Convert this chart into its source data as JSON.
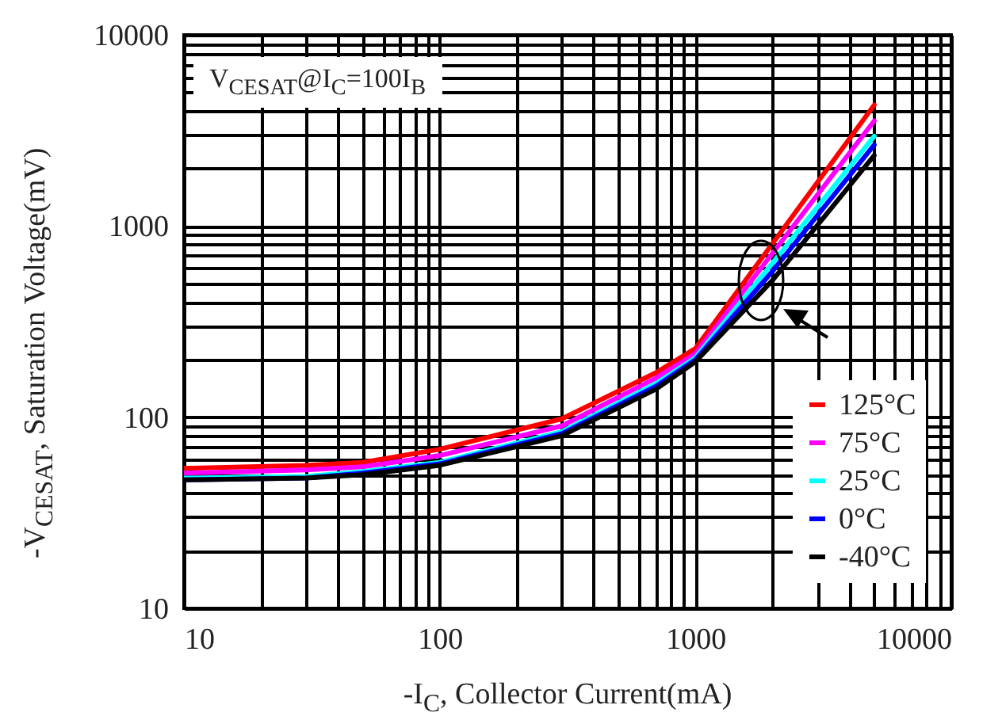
{
  "chart_data": {
    "type": "line",
    "xlabel": "-I$_{C}$, Collector Current(mA)",
    "ylabel": "-V$_{CESAT}$, Saturation Voltage(mV)",
    "annotations": [
      "V$_{CESAT}$@I$_{C}$=100I$_{B}$"
    ],
    "x": [
      10,
      30,
      50,
      100,
      300,
      700,
      1000,
      2000,
      5000
    ],
    "series": [
      {
        "name": "125°C",
        "color": "#ff0000",
        "values": [
          54,
          56,
          58,
          68,
          98,
          171,
          229,
          810,
          4300
        ]
      },
      {
        "name": "75°C",
        "color": "#ff00ff",
        "values": [
          51,
          53,
          55,
          63,
          90,
          160,
          215,
          720,
          3550
        ]
      },
      {
        "name": "25°C",
        "color": "#00ffff",
        "values": [
          48,
          49,
          52,
          58,
          84,
          150,
          205,
          640,
          2950
        ]
      },
      {
        "name": "0°C",
        "color": "#0000ff",
        "values": [
          47,
          48,
          51,
          57,
          82,
          145,
          200,
          580,
          2660
        ]
      },
      {
        "name": "-40°C",
        "color": "#000000",
        "values": [
          47,
          48,
          50,
          56,
          80,
          140,
          195,
          520,
          2340
        ]
      }
    ],
    "log": "xy",
    "xlim": [
      10,
      10000
    ],
    "ylim": [
      10,
      10000
    ],
    "xticks": [
      10,
      {
        "value": 20,
        "label": null
      },
      {
        "value": 30,
        "label": null
      },
      {
        "value": 40,
        "label": null
      },
      {
        "value": 50,
        "label": null
      },
      {
        "value": 60,
        "label": null
      },
      {
        "value": 70,
        "label": null
      },
      {
        "value": 80,
        "label": null
      },
      {
        "value": 90,
        "label": null
      },
      100,
      {
        "value": 200,
        "label": null
      },
      {
        "value": 300,
        "label": null
      },
      {
        "value": 400,
        "label": null
      },
      {
        "value": 500,
        "label": null
      },
      {
        "value": 600,
        "label": null
      },
      {
        "value": 700,
        "label": null
      },
      {
        "value": 800,
        "label": null
      },
      {
        "value": 900,
        "label": null
      },
      1000,
      {
        "value": 2000,
        "label": null
      },
      {
        "value": 3000,
        "label": null
      },
      {
        "value": 4000,
        "label": null
      },
      {
        "value": 5000,
        "label": null
      },
      {
        "value": 6000,
        "label": null
      },
      {
        "value": 7000,
        "label": null
      },
      {
        "value": 8000,
        "label": null
      },
      {
        "value": 9000,
        "label": null
      },
      10000
    ],
    "yticks": [
      10,
      {
        "value": 20,
        "label": null
      },
      {
        "value": 30,
        "label": null
      },
      {
        "value": 40,
        "label": null
      },
      {
        "value": 50,
        "label": null
      },
      {
        "value": 60,
        "label": null
      },
      {
        "value": 70,
        "label": null
      },
      {
        "value": 80,
        "label": null
      },
      {
        "value": 90,
        "label": null
      },
      100,
      {
        "value": 200,
        "label": null
      },
      {
        "value": 300,
        "label": null
      },
      {
        "value": 400,
        "label": null
      },
      {
        "value": 500,
        "label": null
      },
      {
        "value": 600,
        "label": null
      },
      {
        "value": 700,
        "label": null
      },
      {
        "value": 800,
        "label": null
      },
      {
        "value": 900,
        "label": null
      },
      1000,
      {
        "value": 2000,
        "label": null
      },
      {
        "value": 3000,
        "label": null
      },
      {
        "value": 4000,
        "label": null
      },
      {
        "value": 5000,
        "label": null
      },
      {
        "value": 6000,
        "label": null
      },
      {
        "value": 7000,
        "label": null
      },
      {
        "value": 8000,
        "label": null
      },
      {
        "value": 9000,
        "label": null
      },
      10000
    ],
    "grid": true,
    "legend": "bottom right",
    "marker": "none",
    "line_style": "solid"
  }
}
